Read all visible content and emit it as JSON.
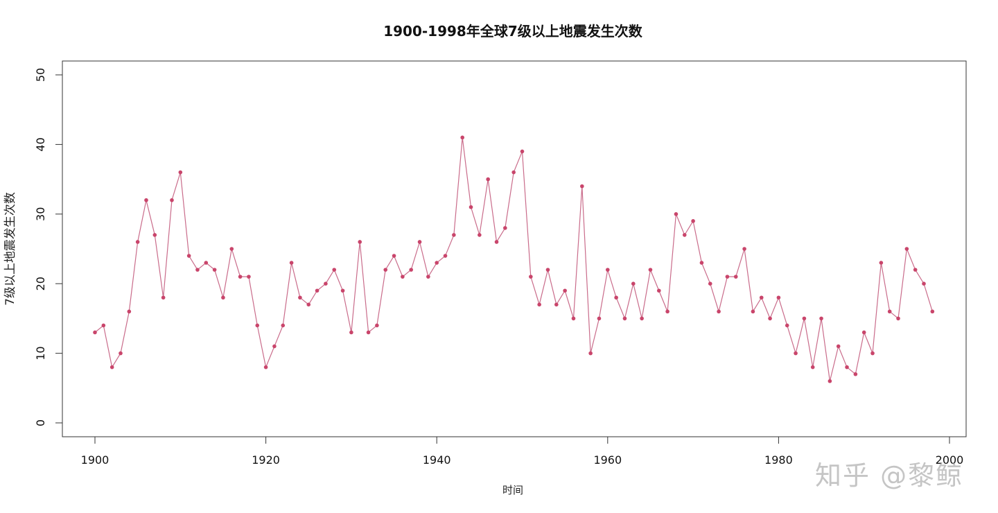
{
  "chart_data": {
    "type": "line",
    "title": "1900-1998年全球7级以上地震发生次数",
    "xlabel": "时间",
    "ylabel": "7级以上地震发生次数",
    "xlim": [
      1900,
      1998
    ],
    "ylim": [
      0,
      50
    ],
    "xticks": [
      1900,
      1920,
      1940,
      1960,
      1980,
      2000
    ],
    "yticks": [
      0,
      10,
      20,
      30,
      40,
      50
    ],
    "grid": false,
    "colors": {
      "line": "#c96b8a",
      "point": "#c9456b",
      "axis": "#333333"
    },
    "x": [
      1900,
      1901,
      1902,
      1903,
      1904,
      1905,
      1906,
      1907,
      1908,
      1909,
      1910,
      1911,
      1912,
      1913,
      1914,
      1915,
      1916,
      1917,
      1918,
      1919,
      1920,
      1921,
      1922,
      1923,
      1924,
      1925,
      1926,
      1927,
      1928,
      1929,
      1930,
      1931,
      1932,
      1933,
      1934,
      1935,
      1936,
      1937,
      1938,
      1939,
      1940,
      1941,
      1942,
      1943,
      1944,
      1945,
      1946,
      1947,
      1948,
      1949,
      1950,
      1951,
      1952,
      1953,
      1954,
      1955,
      1956,
      1957,
      1958,
      1959,
      1960,
      1961,
      1962,
      1963,
      1964,
      1965,
      1966,
      1967,
      1968,
      1969,
      1970,
      1971,
      1972,
      1973,
      1974,
      1975,
      1976,
      1977,
      1978,
      1979,
      1980,
      1981,
      1982,
      1983,
      1984,
      1985,
      1986,
      1987,
      1988,
      1989,
      1990,
      1991,
      1992,
      1993,
      1994,
      1995,
      1996,
      1997,
      1998
    ],
    "y": [
      13,
      14,
      8,
      10,
      16,
      26,
      32,
      27,
      18,
      32,
      36,
      24,
      22,
      23,
      22,
      18,
      25,
      21,
      21,
      14,
      8,
      11,
      14,
      23,
      18,
      17,
      19,
      20,
      22,
      19,
      13,
      26,
      13,
      14,
      22,
      24,
      21,
      22,
      26,
      21,
      23,
      24,
      27,
      41,
      31,
      27,
      35,
      26,
      28,
      36,
      39,
      21,
      17,
      22,
      17,
      19,
      15,
      34,
      10,
      15,
      22,
      18,
      15,
      20,
      15,
      22,
      19,
      16,
      30,
      27,
      29,
      23,
      20,
      16,
      21,
      21,
      25,
      16,
      18,
      15,
      18,
      14,
      10,
      15,
      8,
      15,
      6,
      11,
      8,
      7,
      13,
      10,
      23,
      16,
      15,
      25,
      22,
      20,
      16
    ]
  },
  "watermark": "知乎 @黎鲸"
}
